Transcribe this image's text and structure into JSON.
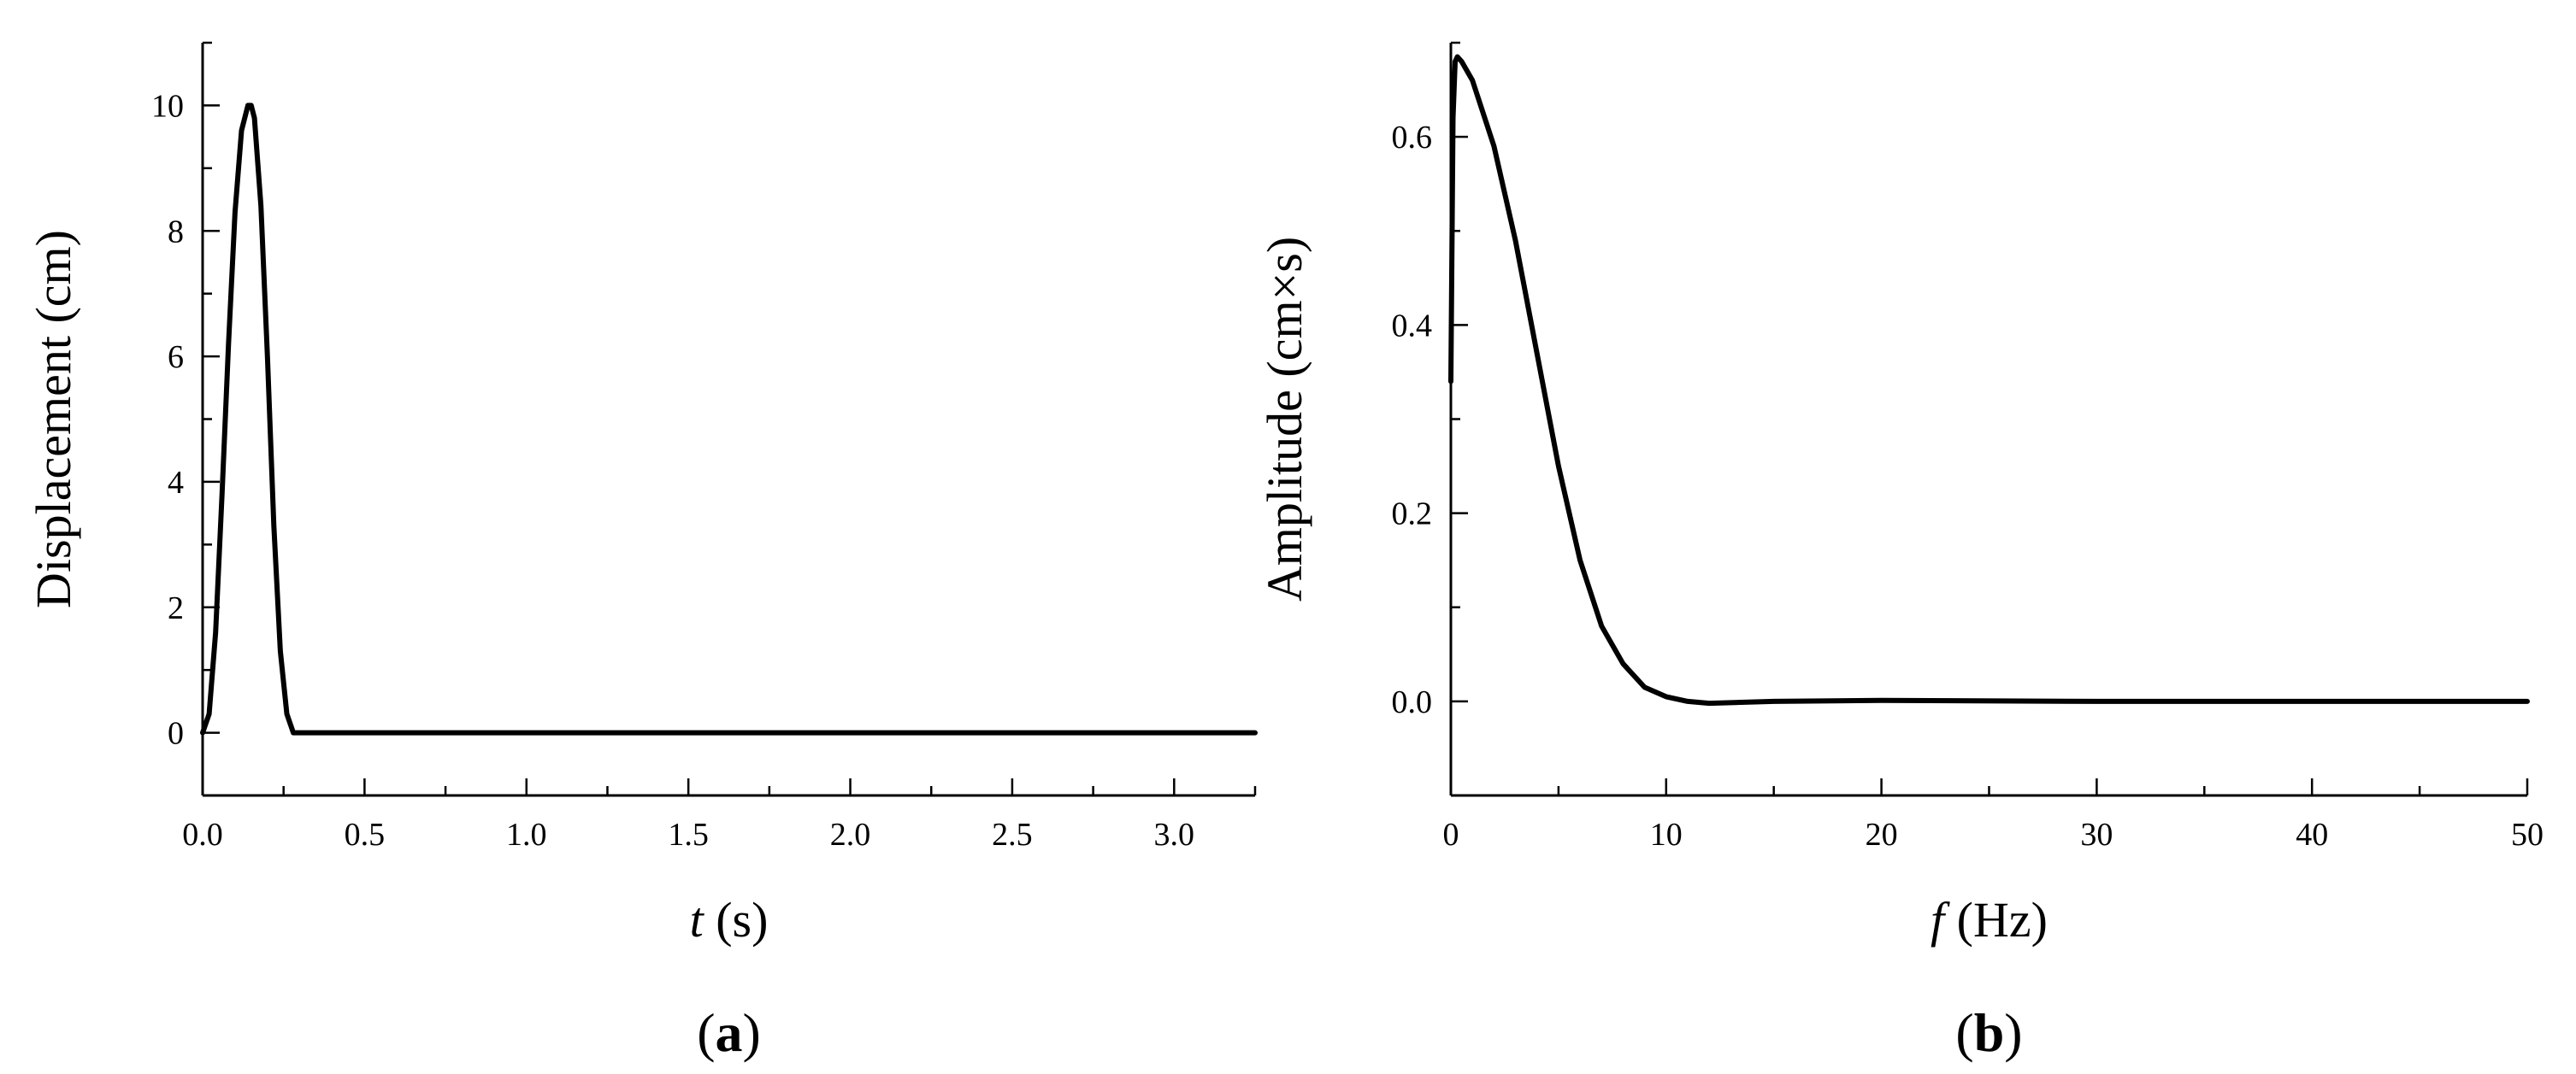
{
  "panels": [
    {
      "open": "(",
      "letter": "a",
      "close": ")"
    },
    {
      "open": "(",
      "letter": "b",
      "close": ")"
    }
  ],
  "chart_data": [
    {
      "type": "line",
      "title": "",
      "xlabel_var": "t",
      "xlabel_unit": "(s)",
      "ylabel": "Displacement (cm)",
      "xlim": [
        0,
        3.25
      ],
      "ylim": [
        -1,
        11
      ],
      "xticks": [
        0.0,
        0.5,
        1.0,
        1.5,
        2.0,
        2.5,
        3.0
      ],
      "xtick_labels": [
        "0.0",
        "0.5",
        "1.0",
        "1.5",
        "2.0",
        "2.5",
        "3.0"
      ],
      "yticks": [
        0,
        2,
        4,
        6,
        8,
        10
      ],
      "ytick_labels": [
        "0",
        "2",
        "4",
        "6",
        "8",
        "10"
      ],
      "grid": false,
      "color": "#000000",
      "series": [
        {
          "x": [
            0,
            0.02,
            0.04,
            0.06,
            0.08,
            0.1,
            0.12,
            0.14,
            0.15,
            0.16,
            0.18,
            0.2,
            0.22,
            0.24,
            0.26,
            0.28,
            0.35,
            1.0,
            2.0,
            3.0,
            3.25
          ],
          "y": [
            0,
            0.3,
            1.6,
            3.8,
            6.2,
            8.3,
            9.6,
            10.0,
            10.0,
            9.8,
            8.4,
            6.0,
            3.3,
            1.3,
            0.3,
            0,
            0,
            0,
            0,
            0,
            0
          ]
        }
      ]
    },
    {
      "type": "line",
      "title": "",
      "xlabel_var": "f",
      "xlabel_unit": "(Hz)",
      "ylabel": "Amplitude (cm×s)",
      "xlim": [
        0,
        50
      ],
      "ylim": [
        -0.1,
        0.7
      ],
      "xticks": [
        0,
        10,
        20,
        30,
        40,
        50
      ],
      "xtick_labels": [
        "0",
        "10",
        "20",
        "30",
        "40",
        "50"
      ],
      "yticks": [
        0.0,
        0.2,
        0.4,
        0.6
      ],
      "ytick_labels": [
        "0.0",
        "0.2",
        "0.4",
        "0.6"
      ],
      "grid": false,
      "color": "#000000",
      "series": [
        {
          "x": [
            0,
            0.1,
            0.2,
            0.3,
            0.5,
            1,
            2,
            3,
            4,
            5,
            6,
            7,
            8,
            9,
            10,
            11,
            12,
            15,
            20,
            30,
            40,
            50
          ],
          "y": [
            0.34,
            0.62,
            0.68,
            0.685,
            0.68,
            0.66,
            0.59,
            0.49,
            0.37,
            0.25,
            0.15,
            0.08,
            0.04,
            0.015,
            0.005,
            0,
            -0.002,
            0,
            0.001,
            0,
            0,
            0
          ]
        }
      ]
    }
  ]
}
